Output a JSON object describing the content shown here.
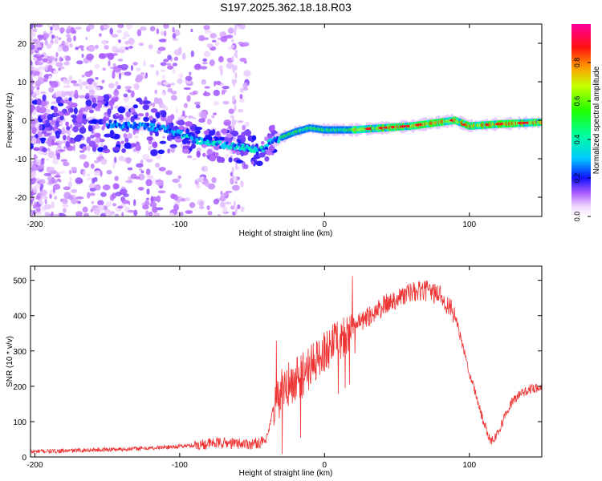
{
  "title": "S197.2025.362.18.18.R03",
  "chart_data": [
    {
      "type": "heatmap",
      "title": "S197.2025.362.18.18.R03",
      "xlabel": "Height of straight line (km)",
      "ylabel": "Frequency (Hz)",
      "xlim": [
        -203,
        150
      ],
      "ylim": [
        -25,
        25
      ],
      "x_ticks": [
        -200,
        -100,
        0,
        100
      ],
      "y_ticks": [
        -20,
        -10,
        0,
        10,
        20
      ],
      "ridge": {
        "x": [
          -150,
          -130,
          -110,
          -90,
          -70,
          -55,
          -45,
          -38,
          -30,
          -20,
          -10,
          0,
          10,
          20,
          40,
          60,
          80,
          90,
          100,
          120,
          150
        ],
        "frequency": [
          -1,
          -1.5,
          -2,
          -5,
          -6.5,
          -7,
          -8,
          -6,
          -4.5,
          -3,
          -2,
          -2.5,
          -2.5,
          -2.5,
          -2,
          -1.5,
          -0.5,
          0,
          -1.5,
          -1,
          -0.5
        ]
      },
      "colorbar": {
        "label": "Normalized spectral amplitude",
        "range": [
          0.0,
          1.0
        ],
        "ticks": [
          "0.0",
          "0.2",
          "0.4",
          "0.6",
          "0.8"
        ]
      }
    },
    {
      "type": "line",
      "xlabel": "Height of straight line (km)",
      "ylabel": "SNR (10 * v/v)",
      "xlim": [
        -203,
        150
      ],
      "ylim": [
        0,
        540
      ],
      "x_ticks": [
        -200,
        -100,
        0,
        100
      ],
      "y_ticks": [
        0,
        100,
        200,
        300,
        400,
        500
      ],
      "series": [
        {
          "name": "SNR",
          "color": "#ee3333",
          "x": [
            -203,
            -180,
            -160,
            -140,
            -120,
            -100,
            -90,
            -80,
            -70,
            -60,
            -50,
            -40,
            -35,
            -30,
            -25,
            -20,
            -15,
            -10,
            -5,
            0,
            10,
            20,
            30,
            40,
            50,
            60,
            70,
            80,
            90,
            100,
            105,
            110,
            115,
            120,
            125,
            130,
            140,
            150
          ],
          "values": [
            15,
            17,
            20,
            22,
            25,
            30,
            33,
            38,
            40,
            38,
            37,
            45,
            140,
            180,
            200,
            215,
            235,
            255,
            275,
            300,
            330,
            365,
            395,
            425,
            450,
            465,
            470,
            460,
            400,
            240,
            170,
            95,
            45,
            70,
            120,
            160,
            190,
            200
          ]
        }
      ]
    }
  ]
}
